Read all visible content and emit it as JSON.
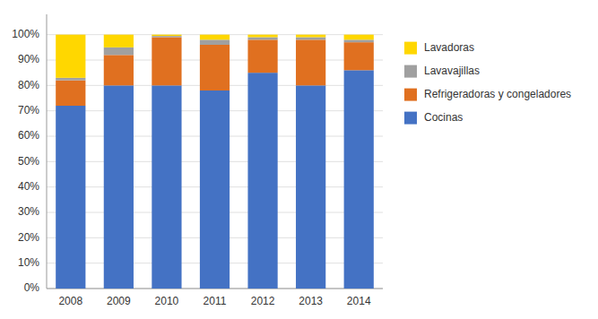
{
  "chart_data": {
    "type": "bar",
    "stacked": true,
    "categories": [
      "2008",
      "2009",
      "2010",
      "2011",
      "2012",
      "2013",
      "2014"
    ],
    "series": [
      {
        "name": "Cocinas",
        "color": "#4472C4",
        "values": [
          72,
          80,
          80,
          78,
          85,
          80,
          86
        ]
      },
      {
        "name": "Refrigeradoras y congeladores",
        "color": "#E07020",
        "values": [
          10,
          12,
          19,
          18,
          13,
          18,
          11
        ]
      },
      {
        "name": "Lavavajillas",
        "color": "#A0A0A0",
        "values": [
          1,
          3,
          0.5,
          2,
          1,
          1,
          1
        ]
      },
      {
        "name": "Lavadoras",
        "color": "#FFD700",
        "values": [
          17,
          5,
          0.5,
          2,
          1,
          1,
          2
        ]
      }
    ],
    "ylim": [
      0,
      108
    ],
    "yticks": [
      {
        "value": 0,
        "label": "0%"
      },
      {
        "value": 10,
        "label": "10%"
      },
      {
        "value": 20,
        "label": "20%"
      },
      {
        "value": 30,
        "label": "30%"
      },
      {
        "value": 40,
        "label": "40%"
      },
      {
        "value": 50,
        "label": "50%"
      },
      {
        "value": 60,
        "label": "60%"
      },
      {
        "value": 70,
        "label": "70%"
      },
      {
        "value": 80,
        "label": "80%"
      },
      {
        "value": 90,
        "label": "90%"
      },
      {
        "value": 100,
        "label": "100%"
      }
    ],
    "grid": true,
    "legend": "right"
  }
}
